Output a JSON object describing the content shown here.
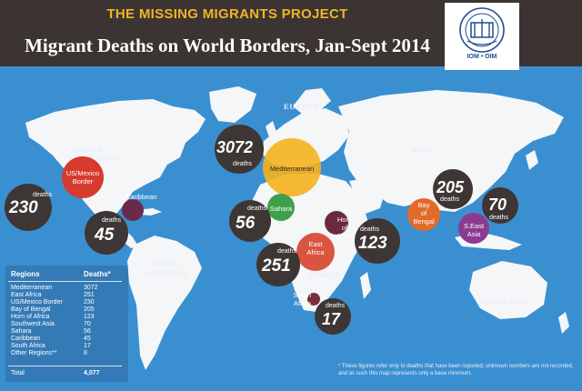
{
  "header": {
    "kicker": "THE MISSING MIGRANTS PROJECT",
    "title": "Migrant Deaths on World Borders, Jan-Sept 2014",
    "logo_text": "IOM • OIM"
  },
  "regions": {
    "north_america_1": "NORTH",
    "north_america_2": "AMERICA",
    "europe": "EUROPE",
    "asia": "ASIA",
    "africa": "AFRICA",
    "south_america_1": "SOUTH",
    "south_america_2": "AMERICA",
    "australia": "AUSTRALIA"
  },
  "bubbles": {
    "mediterranean": {
      "name": "Mediterranean",
      "count": "3072",
      "unit": "deaths"
    },
    "us_mexico": {
      "name_1": "US/Mexico",
      "name_2": "Border",
      "count": "230",
      "unit": "deaths"
    },
    "caribbean": {
      "name": "Caribbean",
      "count": "45",
      "unit": "deaths"
    },
    "sahara": {
      "name": "Sahara",
      "count": "56",
      "unit": "deaths"
    },
    "horn_of_africa": {
      "name_1": "Horn",
      "name_2": "of",
      "name_3": "Africa",
      "count": "123",
      "unit": "deaths"
    },
    "east_africa": {
      "name_1": "East",
      "name_2": "Africa",
      "count": "251",
      "unit": "deaths"
    },
    "south_africa": {
      "name_1": "South",
      "name_2": "Africa",
      "count": "17",
      "unit": "deaths"
    },
    "bay_of_bengal": {
      "name_1": "Bay",
      "name_2": "of",
      "name_3": "Bengal",
      "count": "205",
      "unit": "deaths"
    },
    "se_asia": {
      "name_1": "S.East",
      "name_2": "Asia",
      "count": "70",
      "unit": "deaths"
    }
  },
  "table": {
    "col_region": "Regions",
    "col_deaths": "Deaths*",
    "rows": [
      {
        "region": "Mediterranean",
        "deaths": "3072"
      },
      {
        "region": "East Africa",
        "deaths": "251"
      },
      {
        "region": "US/Mexico Border",
        "deaths": "230"
      },
      {
        "region": "Bay of Bengal",
        "deaths": "205"
      },
      {
        "region": "Horn of Africa",
        "deaths": "123"
      },
      {
        "region": "Southwest Asia",
        "deaths": "70"
      },
      {
        "region": "Sahara",
        "deaths": "56"
      },
      {
        "region": "Caribbean",
        "deaths": "45"
      },
      {
        "region": "South Africa",
        "deaths": "17"
      },
      {
        "region": "Other Regions**",
        "deaths": "8"
      }
    ],
    "total_label": "Total",
    "total_value": "4,077"
  },
  "footnote": "* These figures refer only to deaths that have been reported; unknown numbers are not recorded, and as such this map represents only a base minimum.",
  "colors": {
    "ocean": "#3a8fd1",
    "land": "#f4f6f8",
    "header": "#3b3432",
    "kicker": "#f0b429",
    "dark_bubble": "#3e3634",
    "mediterranean": "#f5b21e",
    "us_mexico": "#d73a2e",
    "caribbean": "#6b2a4a",
    "sahara": "#3ea14a",
    "horn": "#6b2a3a",
    "east_africa": "#d9553f",
    "south_africa": "#7a2d3a",
    "bay_of_bengal": "#e36b2a",
    "se_asia": "#8a3b8f"
  }
}
